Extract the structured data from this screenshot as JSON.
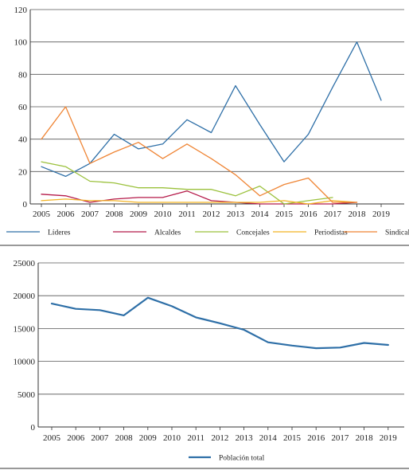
{
  "chart_data": [
    {
      "type": "line",
      "title": "",
      "xlabel": "",
      "ylabel": "",
      "categories": [
        "2005",
        "2006",
        "2007",
        "2008",
        "2009",
        "2010",
        "2011",
        "2012",
        "2013",
        "2014",
        "2015",
        "2016",
        "2017",
        "2018",
        "2019"
      ],
      "ylim": [
        0,
        120
      ],
      "yticks": [
        "0",
        "20",
        "40",
        "60",
        "80",
        "100",
        "120"
      ],
      "grid": "horizontal",
      "legend_position": "bottom",
      "series": [
        {
          "name": "Líderes",
          "color": "#2e6fa7",
          "values": [
            23,
            17,
            25,
            43,
            34,
            37,
            52,
            44,
            73,
            49,
            26,
            43,
            72,
            100,
            64
          ]
        },
        {
          "name": "Alcaldes",
          "color": "#b51a4a",
          "values": [
            6,
            5,
            1,
            3,
            4,
            4,
            8,
            2,
            1,
            0,
            0,
            0,
            0,
            1,
            null
          ]
        },
        {
          "name": "Concejales",
          "color": "#9bc13c",
          "values": [
            26,
            23,
            14,
            13,
            10,
            10,
            9,
            9,
            5,
            11,
            0,
            2,
            4,
            null,
            null
          ]
        },
        {
          "name": "Periodistas",
          "color": "#f2b324",
          "values": [
            2,
            3,
            2,
            2,
            1,
            1,
            1,
            1,
            1,
            1,
            2,
            0,
            2,
            1,
            null
          ]
        },
        {
          "name": "Sindicalistas",
          "color": "#ef8535",
          "values": [
            40,
            60,
            25,
            32,
            38,
            28,
            37,
            28,
            18,
            5,
            12,
            16,
            1,
            1,
            null
          ]
        }
      ]
    },
    {
      "type": "line",
      "title": "",
      "xlabel": "",
      "ylabel": "",
      "categories": [
        "2005",
        "2006",
        "2007",
        "2008",
        "2009",
        "2010",
        "2011",
        "2012",
        "2013",
        "2014",
        "2015",
        "2016",
        "2017",
        "2018",
        "2019"
      ],
      "ylim": [
        0,
        25000
      ],
      "yticks": [
        "0",
        "5000",
        "10000",
        "15000",
        "20000",
        "25000"
      ],
      "grid": "horizontal",
      "legend_position": "bottom",
      "series": [
        {
          "name": "Población total",
          "color": "#2e6fa7",
          "values": [
            18800,
            18000,
            17800,
            17000,
            19700,
            18400,
            16700,
            15800,
            14800,
            12900,
            12400,
            12000,
            12100,
            12800,
            12500
          ]
        }
      ]
    }
  ]
}
